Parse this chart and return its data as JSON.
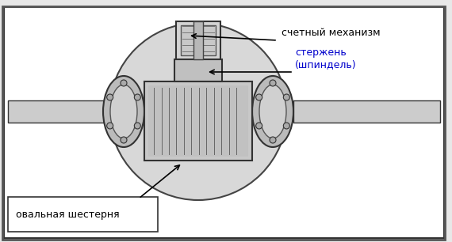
{
  "bg_color": "#f0f0f0",
  "border_color": "#555555",
  "title": "",
  "label_счетный": "счетный механизм",
  "label_стержень": "стержень\n(шпиндель)",
  "label_овальная": "овальная шестерня",
  "text_color_blue": "#0000cc",
  "text_color_red": "#cc0000",
  "text_color_black": "#000000",
  "fig_width": 5.7,
  "fig_height": 3.06,
  "dpi": 100
}
